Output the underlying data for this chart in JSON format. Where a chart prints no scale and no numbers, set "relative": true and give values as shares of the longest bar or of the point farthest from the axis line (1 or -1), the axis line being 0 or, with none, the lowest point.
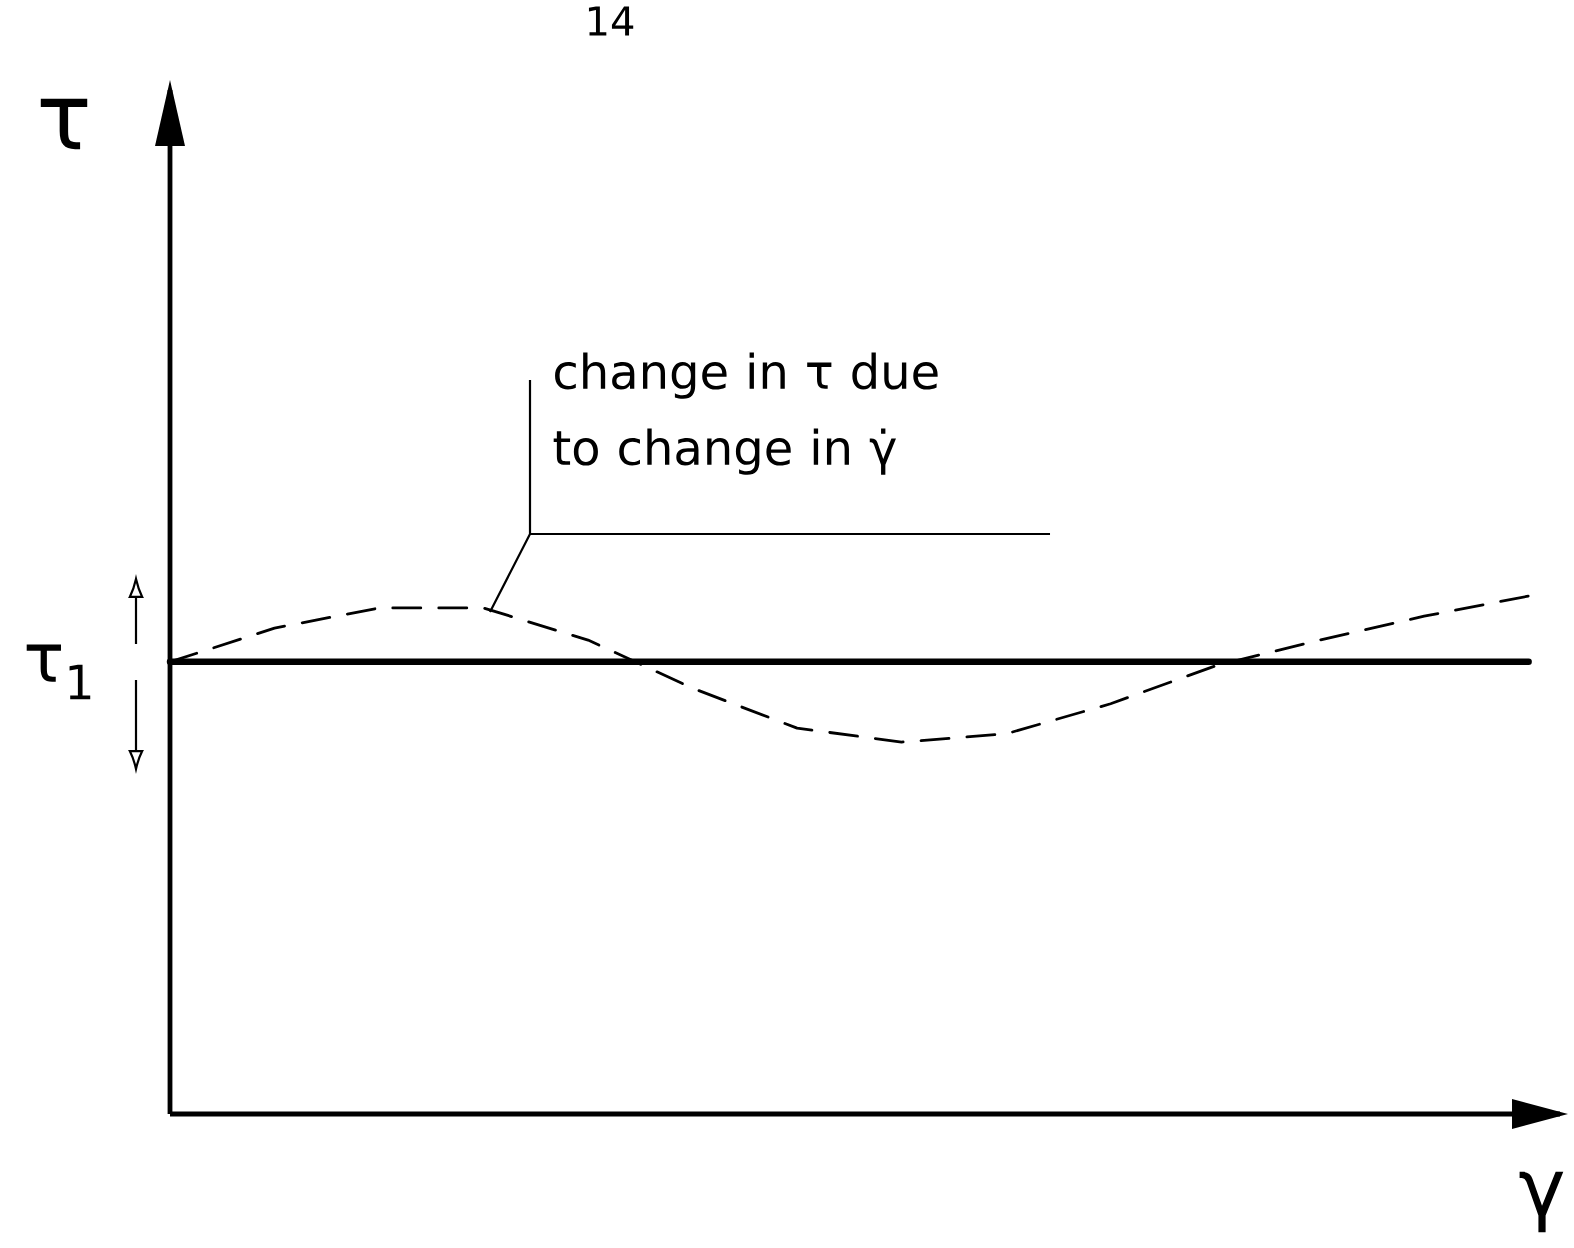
{
  "chart_data": {
    "type": "line",
    "relative": true,
    "xlabel": "γ",
    "ylabel": "τ",
    "categories": [
      null,
      null,
      null,
      null,
      null,
      null,
      null,
      null,
      null,
      null,
      null,
      null,
      null,
      null
    ],
    "series": [
      {
        "color": "#000000",
        "line_style": "solid",
        "values": [
          0.873,
          0.873,
          0.873,
          0.873,
          0.873,
          0.873,
          0.873,
          0.873,
          0.873,
          0.873,
          0.873,
          0.873,
          0.873,
          0.873
        ]
      },
      {
        "color": "#000000",
        "line_style": "dashed",
        "values": [
          0.873,
          0.938,
          0.977,
          0.977,
          0.915,
          0.822,
          0.745,
          0.718,
          0.734,
          0.792,
          0.865,
          0.915,
          0.961,
          1
        ]
      }
    ],
    "annotations": [
      "14",
      "change in τ due to change in γ̇",
      "τ$_{1}$"
    ]
  }
}
